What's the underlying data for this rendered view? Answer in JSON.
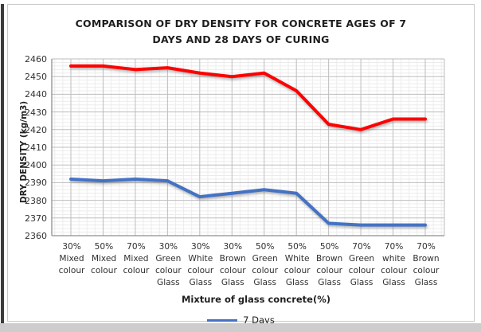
{
  "chart_data": {
    "type": "line",
    "title": "COMPARISON OF DRY DENSITY FOR CONCRETE AGES OF 7 DAYS AND 28 DAYS OF CURING",
    "title_lines": [
      "COMPARISON OF DRY DENSITY FOR CONCRETE AGES OF 7",
      "DAYS AND 28 DAYS OF CURING"
    ],
    "xlabel": "Mixture of glass concrete(%)",
    "ylabel": "DRY DENSITY (kg/m3)",
    "ylim": [
      2360,
      2460
    ],
    "ytick_step": 10,
    "yticks": [
      2460,
      2450,
      2440,
      2430,
      2420,
      2410,
      2400,
      2390,
      2380,
      2370,
      2360
    ],
    "minor_grid_unit": 2,
    "grid": true,
    "legend_position": "bottom",
    "legend_entries": [
      {
        "label": "7 Days",
        "color": "#4472c4"
      }
    ],
    "categories": [
      [
        "30%",
        "Mixed",
        "colour"
      ],
      [
        "50%",
        "Mixed",
        "colour"
      ],
      [
        "70%",
        "Mixed",
        "colour"
      ],
      [
        "30%",
        "Green",
        "colour",
        "Glass"
      ],
      [
        "30%",
        "White",
        "colour",
        "Glass"
      ],
      [
        "30%",
        "Brown",
        "colour",
        "Glass"
      ],
      [
        "50%",
        "Green",
        "colour",
        "Glass"
      ],
      [
        "50%",
        "White",
        "colour",
        "Glass"
      ],
      [
        "50%",
        "Brown",
        "colour",
        "Glass"
      ],
      [
        "70%",
        "Green",
        "colour",
        "Glass"
      ],
      [
        "70%",
        "white",
        "colour",
        "Glass"
      ],
      [
        "70%",
        "Brown",
        "colour",
        "Glass"
      ]
    ],
    "series": [
      {
        "name": "28 Days",
        "color": "#fe0000",
        "in_legend": false,
        "values": [
          2456,
          2456,
          2454,
          2455,
          2452,
          2450,
          2452,
          2442,
          2423,
          2420,
          2426,
          2426
        ]
      },
      {
        "name": "7 Days",
        "color": "#4472c4",
        "in_legend": true,
        "values": [
          2392,
          2391,
          2392,
          2391,
          2382,
          2384,
          2386,
          2384,
          2367,
          2366,
          2366,
          2366
        ]
      }
    ],
    "colors": {
      "major_grid": "#bdbdbd",
      "minor_grid": "#ececec",
      "axis_line": "#8f8f8f",
      "frame_border": "#c9c9c9",
      "text": "#303030"
    }
  }
}
